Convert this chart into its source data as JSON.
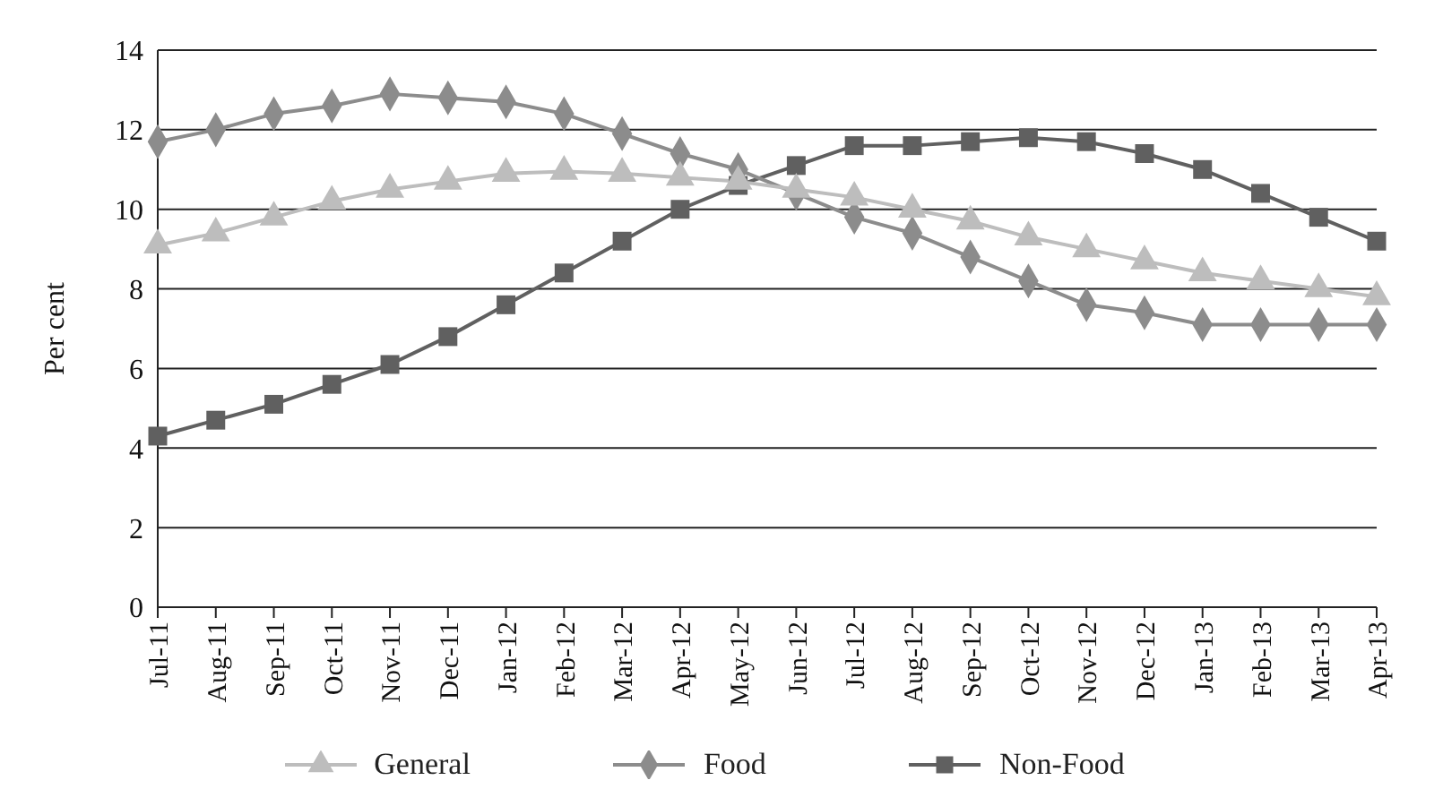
{
  "chart_data": {
    "type": "line",
    "ylabel": "Per cent",
    "categories": [
      "Jul-11",
      "Aug-11",
      "Sep-11",
      "Oct-11",
      "Nov-11",
      "Dec-11",
      "Jan-12",
      "Feb-12",
      "Mar-12",
      "Apr-12",
      "May-12",
      "Jun-12",
      "Jul-12",
      "Aug-12",
      "Sep-12",
      "Oct-12",
      "Nov-12",
      "Dec-12",
      "Jan-13",
      "Feb-13",
      "Mar-13",
      "Apr-13"
    ],
    "series": [
      {
        "name": "General",
        "color": "#bdbdbd",
        "marker": "triangle",
        "values": [
          9.1,
          9.4,
          9.8,
          10.2,
          10.5,
          10.7,
          10.9,
          10.95,
          10.9,
          10.8,
          10.7,
          10.5,
          10.3,
          10.0,
          9.7,
          9.3,
          9.0,
          8.7,
          8.4,
          8.2,
          8.0,
          7.8
        ]
      },
      {
        "name": "Food",
        "color": "#8c8c8c",
        "marker": "diamond",
        "values": [
          11.7,
          12.0,
          12.4,
          12.6,
          12.9,
          12.8,
          12.7,
          12.4,
          11.9,
          11.4,
          11.0,
          10.4,
          9.8,
          9.4,
          8.8,
          8.2,
          7.6,
          7.4,
          7.1,
          7.1,
          7.1,
          7.1
        ]
      },
      {
        "name": "Non-Food",
        "color": "#606060",
        "marker": "square",
        "values": [
          4.3,
          4.7,
          5.1,
          5.6,
          6.1,
          6.8,
          7.6,
          8.4,
          9.2,
          10.0,
          10.6,
          11.1,
          11.6,
          11.6,
          11.7,
          11.8,
          11.7,
          11.4,
          11.0,
          10.4,
          9.8,
          9.2
        ]
      }
    ],
    "ylim": [
      0,
      14
    ],
    "yticks": [
      0,
      2,
      4,
      6,
      8,
      10,
      12,
      14
    ],
    "grid": "y",
    "legend": "bottom",
    "line_style": "solid"
  }
}
